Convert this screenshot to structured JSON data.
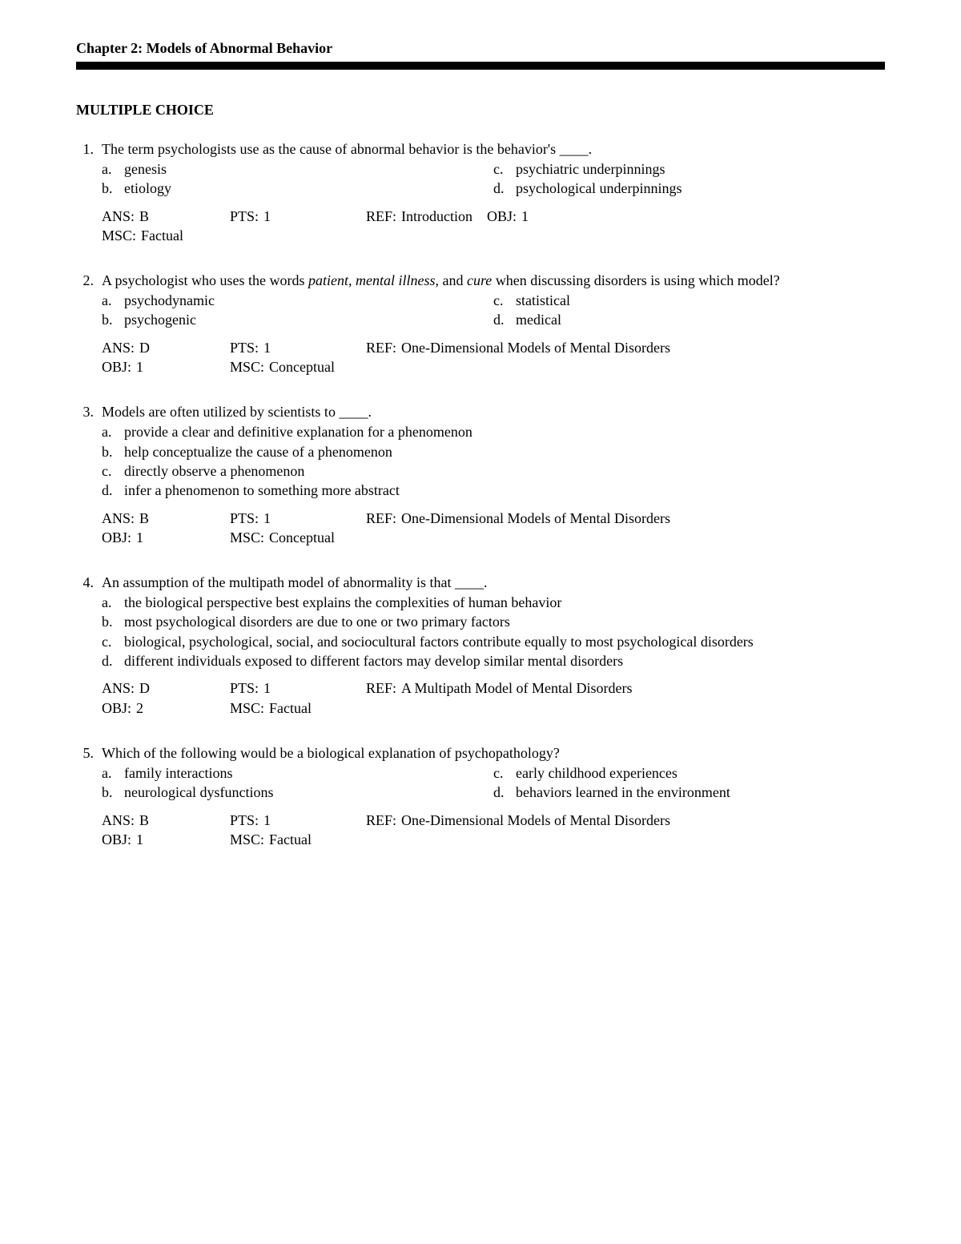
{
  "chapter_title": "Chapter 2: Models of Abnormal Behavior",
  "section_heading": "MULTIPLE CHOICE",
  "labels": {
    "ans": "ANS:",
    "pts": "PTS:",
    "ref": "REF:",
    "obj": "OBJ:",
    "msc": "MSC:"
  },
  "questions": [
    {
      "num": "1.",
      "stem_pre": "The term psychologists use as the cause of abnormal behavior is the behavior's ____.",
      "layout": "two-col",
      "options": {
        "a": "genesis",
        "b": "etiology",
        "c": "psychiatric underpinnings",
        "d": "psychological underpinnings"
      },
      "ans": "B",
      "pts": "1",
      "ref": "Introduction",
      "obj": "1",
      "msc": "Factual",
      "obj_inline": true
    },
    {
      "num": "2.",
      "stem_parts": [
        {
          "t": "A psychologist who uses the words "
        },
        {
          "t": "patient, mental illness,",
          "i": true
        },
        {
          "t": " and "
        },
        {
          "t": "cure",
          "i": true
        },
        {
          "t": " when discussing disorders is using which model?"
        }
      ],
      "layout": "two-col",
      "options": {
        "a": "psychodynamic",
        "b": "psychogenic",
        "c": "statistical",
        "d": "medical"
      },
      "ans": "D",
      "pts": "1",
      "ref": "One-Dimensional Models of Mental Disorders",
      "obj": "1",
      "msc": "Conceptual",
      "obj_inline": false
    },
    {
      "num": "3.",
      "stem_pre": "Models are often utilized by scientists to ____.",
      "layout": "single",
      "options": {
        "a": "provide a clear and definitive explanation for a phenomenon",
        "b": "help conceptualize the cause of a phenomenon",
        "c": "directly observe a phenomenon",
        "d": "infer a phenomenon to something more abstract"
      },
      "ans": "B",
      "pts": "1",
      "ref": "One-Dimensional Models of Mental Disorders",
      "obj": "1",
      "msc": "Conceptual",
      "obj_inline": false
    },
    {
      "num": "4.",
      "stem_pre": "An assumption of the multipath model of abnormality is that ____.",
      "layout": "single",
      "options": {
        "a": "the biological perspective best explains the complexities of human behavior",
        "b": "most psychological disorders are due to one or two primary factors",
        "c": "biological, psychological, social, and sociocultural factors contribute equally to most psychological disorders",
        "d": "different individuals exposed to different factors may develop similar mental disorders"
      },
      "ans": "D",
      "pts": "1",
      "ref": "A Multipath Model of Mental Disorders",
      "obj": "2",
      "msc": "Factual",
      "obj_inline": false
    },
    {
      "num": "5.",
      "stem_pre": "Which of the following would be a biological explanation of psychopathology?",
      "layout": "two-col",
      "options": {
        "a": "family interactions",
        "b": "neurological dysfunctions",
        "c": "early childhood experiences",
        "d": "behaviors learned in the environment"
      },
      "ans": "B",
      "pts": "1",
      "ref": "One-Dimensional Models of Mental Disorders",
      "obj": "1",
      "msc": "Factual",
      "obj_inline": false
    }
  ]
}
